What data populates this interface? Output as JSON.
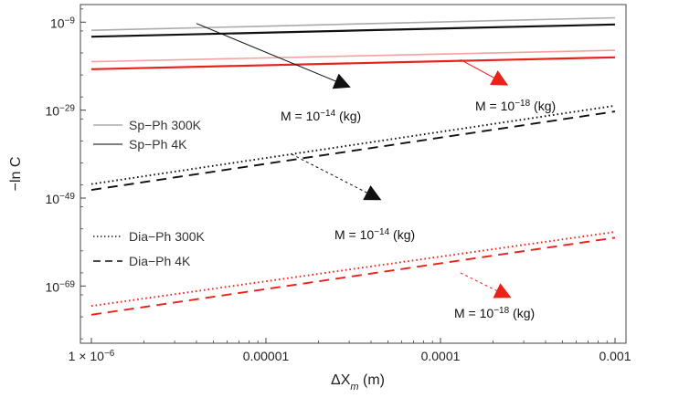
{
  "chart_data": {
    "type": "line",
    "xscale": "log",
    "yscale": "log",
    "xlabel": "ΔX",
    "xlabel_sub": "m",
    "xlabel_unit": " (m)",
    "ylabel": "−ln C",
    "xlim": [
      1e-06,
      0.001
    ],
    "ylim": [
      1e-82,
      1e-05
    ],
    "xticks": [
      {
        "value": 1e-06,
        "label": "1 × 10",
        "exp": "−6"
      },
      {
        "value": 1e-05,
        "label": "0.00001"
      },
      {
        "value": 0.0001,
        "label": "0.0001"
      },
      {
        "value": 0.001,
        "label": "0.001"
      }
    ],
    "yticks": [
      {
        "value": 1e-09,
        "label": "10",
        "exp": "−9"
      },
      {
        "value": 1e-29,
        "label": "10",
        "exp": "−29"
      },
      {
        "value": 1e-49,
        "label": "10",
        "exp": "−49"
      },
      {
        "value": 1e-69,
        "label": "10",
        "exp": "−69"
      }
    ],
    "grid": false,
    "series": [
      {
        "name": "Sp−Ph 300K",
        "mass": "M = 10⁻¹⁴ (kg)",
        "color": "#aaaaaa",
        "dash": "solid",
        "x": [
          1e-06,
          0.001
        ],
        "y": [
          1.4e-11,
          1e-08
        ]
      },
      {
        "name": "Sp−Ph 4K",
        "mass": "M = 10⁻¹⁴ (kg)",
        "color": "#111111",
        "dash": "solid",
        "x": [
          1e-06,
          0.001
        ],
        "y": [
          5e-13,
          3e-10
        ]
      },
      {
        "name": "Sp−Ph 300K",
        "mass": "M = 10⁻¹⁸ (kg)",
        "color": "#f4a0a0",
        "dash": "solid",
        "x": [
          1e-06,
          0.001
        ],
        "y": [
          1e-18,
          4e-16
        ]
      },
      {
        "name": "Sp−Ph 4K",
        "mass": "M = 10⁻¹⁸ (kg)",
        "color": "#e8221a",
        "dash": "solid",
        "x": [
          1e-06,
          0.001
        ],
        "y": [
          2e-20,
          1e-17
        ]
      },
      {
        "name": "Dia−Ph 300K",
        "mass": "M = 10⁻¹⁴ (kg)",
        "color": "#111111",
        "dash": "dotted",
        "x": [
          1e-06,
          0.001
        ],
        "y": [
          1.5e-46,
          1e-28
        ]
      },
      {
        "name": "Dia−Ph 4K",
        "mass": "M = 10⁻¹⁴ (kg)",
        "color": "#111111",
        "dash": "dashed",
        "x": [
          1e-06,
          0.001
        ],
        "y": [
          7e-48,
          5e-30
        ]
      },
      {
        "name": "Dia−Ph 300K",
        "mass": "M = 10⁻¹⁸ (kg)",
        "color": "#e8221a",
        "dash": "dotted",
        "x": [
          1e-06,
          0.001
        ],
        "y": [
          3e-74,
          2e-57
        ]
      },
      {
        "name": "Dia−Ph 4K",
        "mass": "M = 10⁻¹⁸ (kg)",
        "color": "#e8221a",
        "dash": "dashed",
        "x": [
          1e-06,
          0.001
        ],
        "y": [
          3e-76,
          1e-58
        ]
      }
    ],
    "legend": [
      {
        "label": "Sp−Ph 300K",
        "color": "#aaaaaa",
        "dash": "solid"
      },
      {
        "label": "Sp−Ph 4K",
        "color": "#555555",
        "dash": "solid"
      },
      {
        "label": "Dia−Ph 300K",
        "color": "#111111",
        "dash": "dotted"
      },
      {
        "label": "Dia−Ph 4K",
        "color": "#111111",
        "dash": "dashed"
      }
    ],
    "annotations": [
      {
        "text": "M = 10",
        "exp": "−14",
        "unit": " (kg)",
        "color": "#111111",
        "arrow": "solid",
        "from": [
          4e-06,
          5e-10
        ],
        "to": [
          3e-05,
          2e-24
        ]
      },
      {
        "text": "M = 10",
        "exp": "−18",
        "unit": " (kg)",
        "color": "#e8221a",
        "arrow": "solid",
        "from": [
          0.00013,
          3e-18
        ],
        "to": [
          0.00024,
          6e-24
        ]
      },
      {
        "text": "M = 10",
        "exp": "−14",
        "unit": " (kg)",
        "color": "#111111",
        "arrow": "dashed",
        "from": [
          1.4e-05,
          1e-39
        ],
        "to": [
          4.5e-05,
          5e-50
        ]
      },
      {
        "text": "M = 10",
        "exp": "−18",
        "unit": " (kg)",
        "color": "#e8221a",
        "arrow": "dashed",
        "from": [
          0.00013,
          1e-66
        ],
        "to": [
          0.00025,
          3e-72
        ]
      }
    ]
  }
}
